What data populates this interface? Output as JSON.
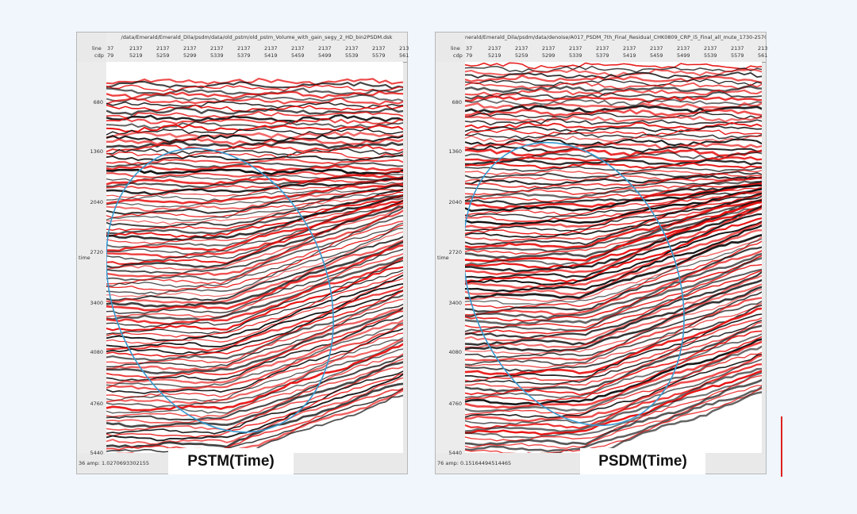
{
  "panels": [
    {
      "path": "/data/Emerald/Emerald_Dila/psdm/data/old_pstm/old_pstm_Volume_with_gain_segy_2_HD_bin2PSDM.dsk",
      "status": "36  amp: 1.0270693302155",
      "label": "PSTM(Time)"
    },
    {
      "path": "nerald/Emerald_Dila/psdm/data/denoise/A017_PSDM_7th_Final_Residual_CHK0809_CRP_i5_Final_all_mute_1730-2570_stk_step3_X_poftan_D2T_",
      "status": "76  amp: 0.15164494514465",
      "label": "PSDM(Time)"
    }
  ],
  "header": {
    "line_label": "line",
    "cdp_label": "cdp",
    "line_values": [
      "37",
      "2137",
      "2137",
      "2137",
      "2137",
      "2137",
      "2137",
      "2137",
      "2137",
      "2137",
      "2137",
      "213"
    ],
    "cdp_values": [
      "79",
      "5219",
      "5259",
      "5299",
      "5339",
      "5379",
      "5419",
      "5459",
      "5499",
      "5539",
      "5579",
      "561"
    ]
  },
  "axis": {
    "label": "time",
    "ticks": [
      "680",
      "1360",
      "2040",
      "2720",
      "3400",
      "4080",
      "4760",
      "5440"
    ]
  },
  "colors": {
    "positive": "#e81010",
    "negative": "#111111",
    "ellipse": "#3a9ad0",
    "accent_line": "#e02020"
  }
}
